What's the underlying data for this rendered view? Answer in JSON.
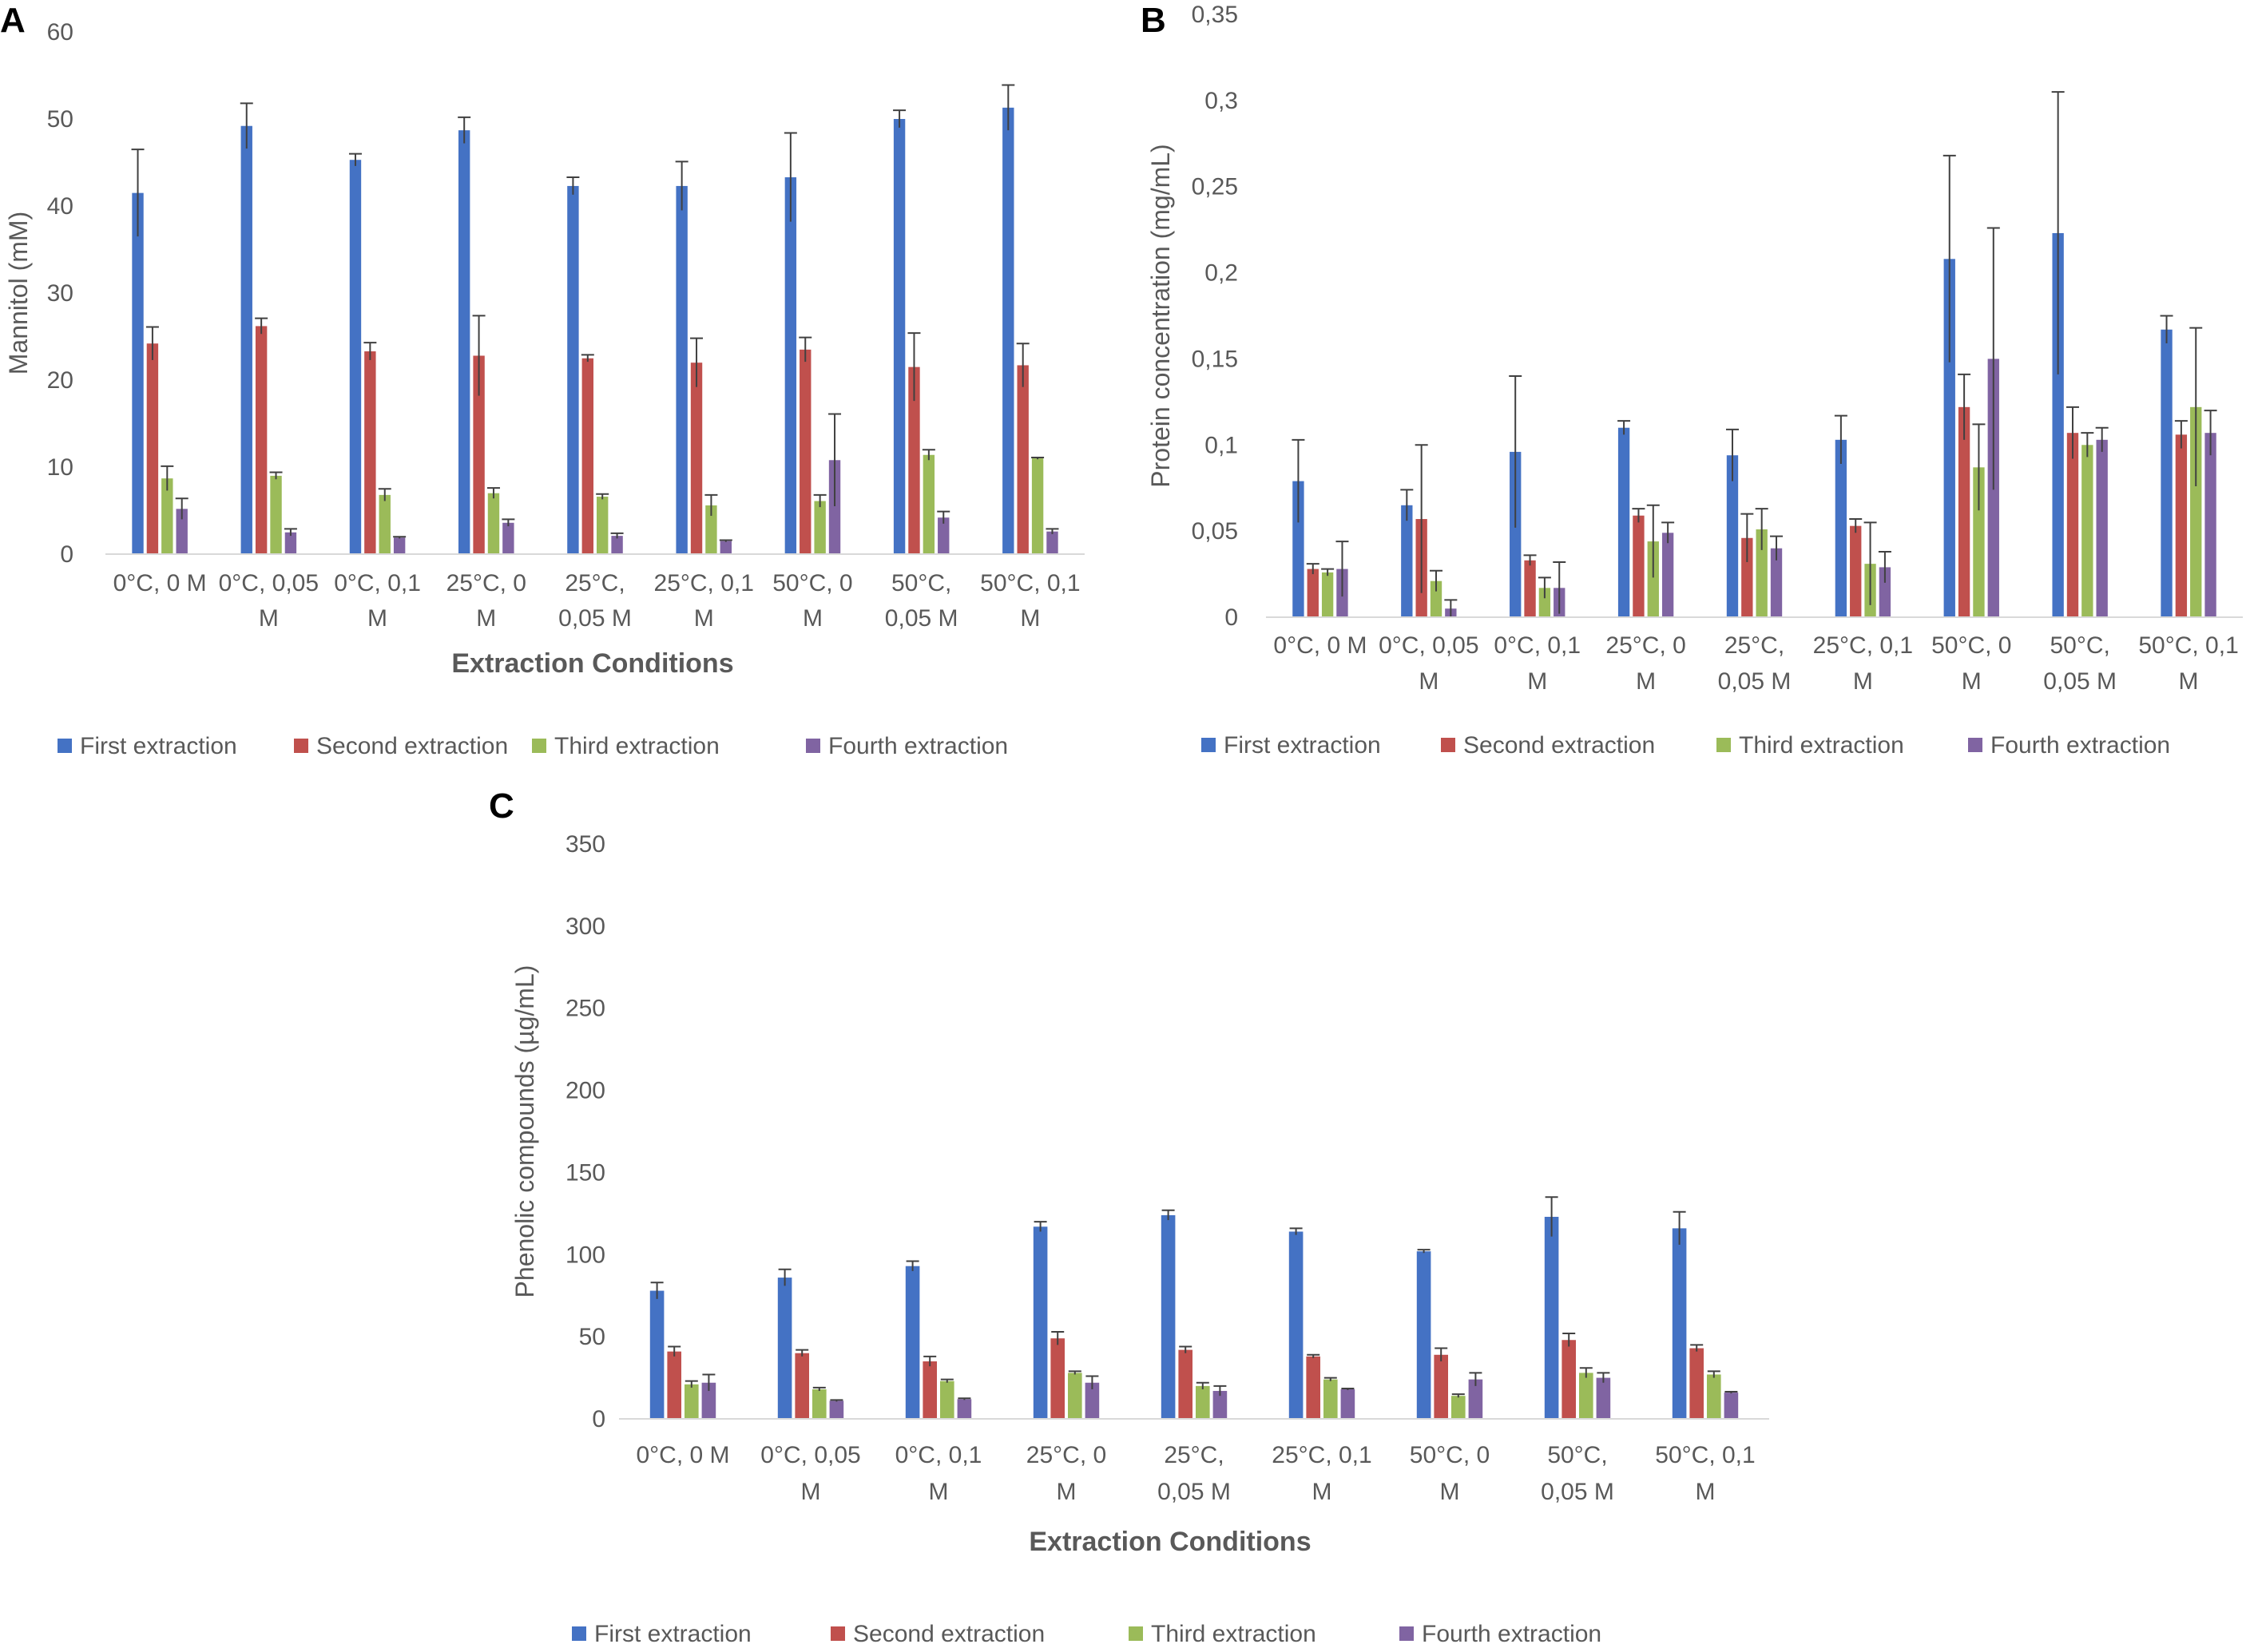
{
  "figure": {
    "panel_labels": [
      "A",
      "B",
      "C"
    ]
  },
  "chart_data": [
    {
      "type": "bar",
      "panel": "A",
      "title": "",
      "xlabel": "Extraction Conditions",
      "ylabel": "Mannitol (mM)",
      "ylim": [
        0,
        60
      ],
      "yticks": [
        "0",
        "10",
        "20",
        "30",
        "40",
        "50",
        "60"
      ],
      "grid": false,
      "legend_position": "bottom",
      "categories": [
        [
          "0°C, 0 M"
        ],
        [
          "0°C, 0,05",
          "M"
        ],
        [
          "0°C, 0,1",
          "M"
        ],
        [
          "25°C, 0",
          "M"
        ],
        [
          "25°C,",
          "0,05 M"
        ],
        [
          "25°C, 0,1",
          "M"
        ],
        [
          "50°C, 0",
          "M"
        ],
        [
          "50°C,",
          "0,05 M"
        ],
        [
          "50°C, 0,1",
          "M"
        ]
      ],
      "series": [
        {
          "name": "First extraction",
          "color": "#4472C4",
          "values": [
            41.5,
            49.2,
            45.3,
            48.7,
            42.3,
            42.3,
            43.3,
            50.0,
            51.3
          ],
          "errors": [
            5.0,
            2.6,
            0.7,
            1.5,
            1.0,
            2.8,
            5.1,
            1.0,
            2.6
          ]
        },
        {
          "name": "Second extraction",
          "color": "#C0504D",
          "values": [
            24.2,
            26.2,
            23.3,
            22.8,
            22.5,
            22.0,
            23.5,
            21.5,
            21.7
          ],
          "errors": [
            1.9,
            0.9,
            1.0,
            4.6,
            0.4,
            2.8,
            1.4,
            3.9,
            2.5
          ]
        },
        {
          "name": "Third extraction",
          "color": "#9BBB59",
          "values": [
            8.7,
            9.0,
            6.8,
            7.0,
            6.6,
            5.6,
            6.1,
            11.4,
            11.0
          ],
          "errors": [
            1.4,
            0.4,
            0.7,
            0.6,
            0.3,
            1.2,
            0.7,
            0.6,
            0.1
          ]
        },
        {
          "name": "Fourth extraction",
          "color": "#8064A2",
          "values": [
            5.2,
            2.5,
            1.9,
            3.6,
            2.1,
            1.5,
            10.8,
            4.2,
            2.6
          ],
          "errors": [
            1.2,
            0.4,
            0.1,
            0.4,
            0.3,
            0.1,
            5.3,
            0.7,
            0.3
          ]
        }
      ]
    },
    {
      "type": "bar",
      "panel": "B",
      "title": "",
      "xlabel": "",
      "ylabel": "Protein concentration (mg/mL)",
      "ylim": [
        0,
        0.35
      ],
      "yticks": [
        "0",
        "0,05",
        "0,1",
        "0,15",
        "0,2",
        "0,25",
        "0,3",
        "0,35"
      ],
      "grid": false,
      "legend_position": "bottom",
      "categories": [
        [
          "0°C, 0 M"
        ],
        [
          "0°C, 0,05",
          "M"
        ],
        [
          "0°C, 0,1",
          "M"
        ],
        [
          "25°C, 0",
          "M"
        ],
        [
          "25°C,",
          "0,05 M"
        ],
        [
          "25°C, 0,1",
          "M"
        ],
        [
          "50°C, 0",
          "M"
        ],
        [
          "50°C,",
          "0,05 M"
        ],
        [
          "50°C, 0,1",
          "M"
        ]
      ],
      "series": [
        {
          "name": "First extraction",
          "color": "#4472C4",
          "values": [
            0.079,
            0.065,
            0.096,
            0.11,
            0.094,
            0.103,
            0.208,
            0.223,
            0.167
          ],
          "errors": [
            0.024,
            0.009,
            0.044,
            0.004,
            0.015,
            0.014,
            0.06,
            0.082,
            0.008
          ]
        },
        {
          "name": "Second extraction",
          "color": "#C0504D",
          "values": [
            0.028,
            0.057,
            0.033,
            0.059,
            0.046,
            0.053,
            0.122,
            0.107,
            0.106
          ],
          "errors": [
            0.003,
            0.043,
            0.003,
            0.004,
            0.014,
            0.004,
            0.019,
            0.015,
            0.008
          ]
        },
        {
          "name": "Third extraction",
          "color": "#9BBB59",
          "values": [
            0.026,
            0.021,
            0.017,
            0.044,
            0.051,
            0.031,
            0.087,
            0.1,
            0.122
          ],
          "errors": [
            0.002,
            0.006,
            0.006,
            0.021,
            0.012,
            0.024,
            0.025,
            0.007,
            0.046
          ]
        },
        {
          "name": "Fourth extraction",
          "color": "#8064A2",
          "values": [
            0.028,
            0.005,
            0.017,
            0.049,
            0.04,
            0.029,
            0.15,
            0.103,
            0.107
          ],
          "errors": [
            0.016,
            0.005,
            0.015,
            0.006,
            0.007,
            0.009,
            0.076,
            0.007,
            0.013
          ]
        }
      ]
    },
    {
      "type": "bar",
      "panel": "C",
      "title": "",
      "xlabel": "Extraction Conditions",
      "ylabel": "Phenolic compounds (µg/mL)",
      "ylim": [
        0,
        350
      ],
      "yticks": [
        "0",
        "50",
        "100",
        "150",
        "200",
        "250",
        "300",
        "350"
      ],
      "grid": false,
      "legend_position": "bottom",
      "categories": [
        [
          "0°C, 0 M"
        ],
        [
          "0°C, 0,05",
          "M"
        ],
        [
          "0°C, 0,1",
          "M"
        ],
        [
          "25°C, 0",
          "M"
        ],
        [
          "25°C,",
          "0,05 M"
        ],
        [
          "25°C, 0,1",
          "M"
        ],
        [
          "50°C, 0",
          "M"
        ],
        [
          "50°C,",
          "0,05 M"
        ],
        [
          "50°C, 0,1",
          "M"
        ]
      ],
      "series": [
        {
          "name": "First extraction",
          "color": "#4472C4",
          "values": [
            78,
            86,
            93,
            117,
            124,
            114,
            102,
            123,
            116
          ],
          "errors": [
            5,
            5,
            3,
            3,
            3,
            2,
            1,
            12,
            10
          ]
        },
        {
          "name": "Second extraction",
          "color": "#C0504D",
          "values": [
            41,
            40,
            35,
            49,
            42,
            38,
            39,
            48,
            43
          ],
          "errors": [
            3,
            2,
            3,
            4,
            2,
            1,
            4,
            4,
            2
          ]
        },
        {
          "name": "Third extraction",
          "color": "#9BBB59",
          "values": [
            21,
            18,
            23,
            28,
            20,
            24,
            14,
            28,
            27
          ],
          "errors": [
            2,
            1,
            1,
            1,
            2,
            1,
            1,
            3,
            2
          ]
        },
        {
          "name": "Fourth extraction",
          "color": "#8064A2",
          "values": [
            22,
            11,
            12,
            22,
            17,
            18,
            24,
            25,
            16
          ],
          "errors": [
            5,
            0.5,
            0.5,
            4,
            3,
            0.5,
            4,
            3,
            0.5
          ]
        }
      ]
    }
  ]
}
